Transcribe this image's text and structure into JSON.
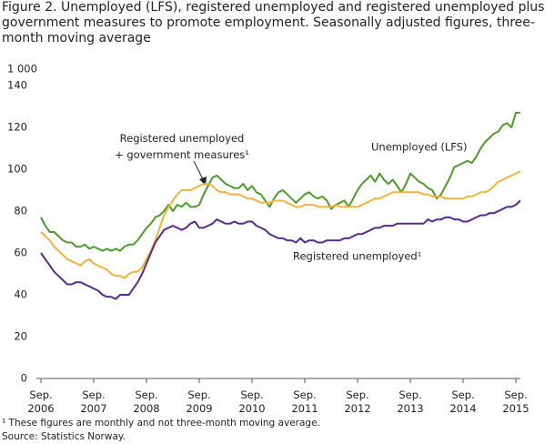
{
  "chart_data": {
    "type": "line",
    "title": "Figure 2. Unemployed (LFS), registered unemployed and registered unemployed plus government measures to promote employment. Seasonally adjusted figures, three-month moving average",
    "y_label": "1 000",
    "footnote": "¹ These figures are monthly and not three-month moving average.",
    "source": "Source: Statistics Norway.",
    "categories": [
      "Sep. 2006",
      null,
      null,
      null,
      null,
      null,
      null,
      null,
      null,
      null,
      null,
      null,
      "Sep. 2007",
      null,
      null,
      null,
      null,
      null,
      null,
      null,
      null,
      null,
      null,
      null,
      "Sep. 2008",
      null,
      null,
      null,
      null,
      null,
      null,
      null,
      null,
      null,
      null,
      null,
      "Sep. 2009",
      null,
      null,
      null,
      null,
      null,
      null,
      null,
      null,
      null,
      null,
      null,
      "Sep. 2010",
      null,
      null,
      null,
      null,
      null,
      null,
      null,
      null,
      null,
      null,
      null,
      "Sep. 2011",
      null,
      null,
      null,
      null,
      null,
      null,
      null,
      null,
      null,
      null,
      null,
      "Sep. 2012",
      null,
      null,
      null,
      null,
      null,
      null,
      null,
      null,
      null,
      null,
      null,
      "Sep. 2013",
      null,
      null,
      null,
      null,
      null,
      null,
      null,
      null,
      null,
      null,
      null,
      "Sep. 2014",
      null,
      null,
      null,
      null,
      null,
      null,
      null,
      null,
      null,
      null,
      null,
      "Sep. 2015",
      null
    ],
    "ylim": [
      0,
      140
    ],
    "yticks": [
      0,
      20,
      40,
      60,
      80,
      100,
      120,
      140
    ],
    "grid": false,
    "series": [
      {
        "name": "Unemployed (LFS)",
        "color": "#4f9a2b",
        "values": [
          77,
          73,
          70,
          70,
          68,
          66,
          65,
          65,
          63,
          63,
          64,
          62,
          63,
          62,
          61,
          62,
          61,
          62,
          61,
          63,
          64,
          64,
          66,
          69,
          72,
          74,
          77,
          78,
          80,
          83,
          80,
          83,
          82,
          84,
          82,
          82,
          83,
          88,
          92,
          96,
          97,
          95,
          93,
          92,
          91,
          91,
          93,
          90,
          92,
          89,
          88,
          85,
          82,
          86,
          89,
          90,
          88,
          86,
          84,
          86,
          88,
          89,
          87,
          86,
          87,
          85,
          81,
          83,
          84,
          85,
          82,
          86,
          90,
          93,
          95,
          97,
          94,
          98,
          95,
          93,
          95,
          92,
          89,
          93,
          98,
          96,
          94,
          93,
          91,
          90,
          86,
          88,
          92,
          96,
          101,
          102,
          103,
          104,
          103,
          106,
          110,
          113,
          115,
          117,
          118,
          121,
          122,
          120,
          127,
          127
        ]
      },
      {
        "name": "Registered unemployed + government measures¹",
        "color": "#f0b43c",
        "values": [
          70,
          68,
          66,
          63,
          61,
          59,
          57,
          56,
          55,
          54,
          56,
          57,
          55,
          54,
          53,
          52,
          50,
          49,
          49,
          48,
          50,
          51,
          51,
          53,
          57,
          61,
          66,
          72,
          78,
          82,
          85,
          88,
          90,
          90,
          90,
          91,
          92,
          93,
          93,
          92,
          90,
          89,
          89,
          88,
          88,
          88,
          87,
          86,
          86,
          85,
          84,
          84,
          84,
          85,
          85,
          85,
          84,
          83,
          82,
          82,
          83,
          83,
          83,
          82,
          82,
          82,
          82,
          83,
          82,
          82,
          82,
          82,
          82,
          83,
          84,
          85,
          86,
          86,
          87,
          88,
          89,
          89,
          89,
          89,
          89,
          89,
          89,
          88,
          88,
          87,
          87,
          87,
          86,
          86,
          86,
          86,
          86,
          87,
          87,
          88,
          89,
          89,
          90,
          92,
          94,
          95,
          96,
          97,
          98,
          99
        ]
      },
      {
        "name": "Registered unemployed¹",
        "color": "#5a2a8a",
        "values": [
          60,
          57,
          54,
          51,
          49,
          47,
          45,
          45,
          46,
          46,
          45,
          44,
          43,
          42,
          40,
          39,
          39,
          38,
          40,
          40,
          40,
          43,
          46,
          50,
          55,
          60,
          65,
          68,
          71,
          72,
          73,
          72,
          71,
          72,
          74,
          75,
          72,
          72,
          73,
          74,
          76,
          75,
          74,
          74,
          75,
          74,
          74,
          75,
          75,
          73,
          72,
          71,
          69,
          68,
          67,
          67,
          66,
          66,
          65,
          67,
          65,
          66,
          66,
          65,
          65,
          66,
          66,
          66,
          66,
          67,
          67,
          68,
          69,
          69,
          70,
          71,
          72,
          72,
          73,
          73,
          73,
          74,
          74,
          74,
          74,
          74,
          74,
          74,
          76,
          75,
          76,
          76,
          77,
          77,
          76,
          76,
          75,
          75,
          76,
          77,
          78,
          78,
          79,
          79,
          80,
          81,
          82,
          82,
          83,
          85
        ]
      }
    ]
  }
}
